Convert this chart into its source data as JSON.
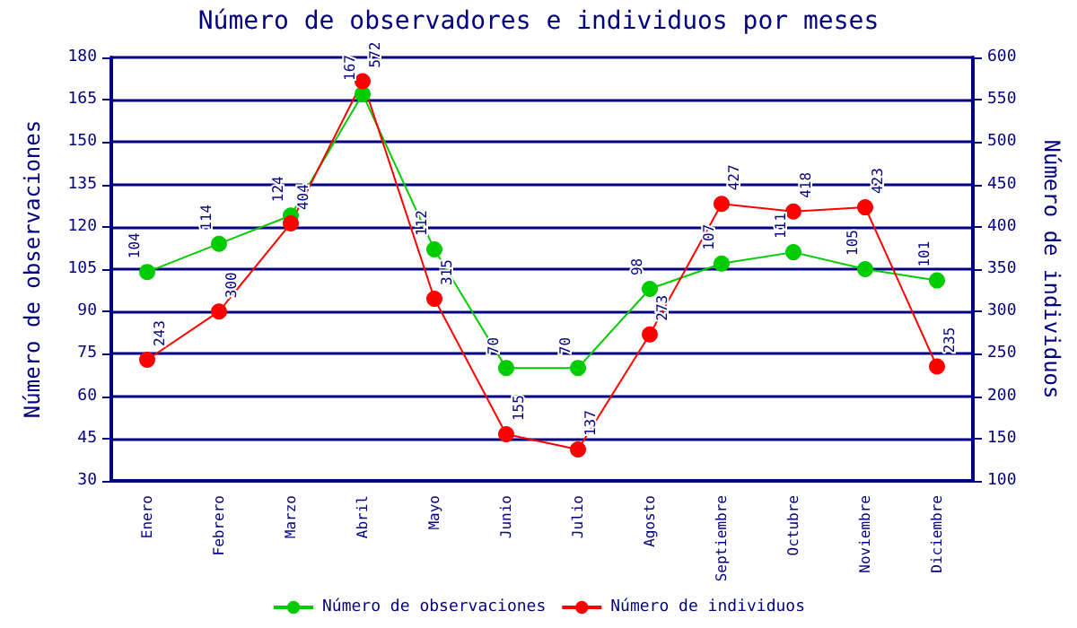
{
  "chart_data": {
    "type": "line",
    "title": "Número de observadores e individuos por meses",
    "ylabel": "Número de observaciones",
    "y2label": "Número de individuos",
    "categories": [
      "Enero",
      "Febrero",
      "Marzo",
      "Abril",
      "Mayo",
      "Junio",
      "Julio",
      "Agosto",
      "Septiembre",
      "Octubre",
      "Noviembre",
      "Diciembre"
    ],
    "series": [
      {
        "name": "Número de observaciones",
        "color": "#00cc00",
        "values": [
          104,
          114,
          124,
          167,
          112,
          70,
          70,
          98,
          107,
          111,
          105,
          101
        ]
      },
      {
        "name": "Número de individuos",
        "color": "#ff0000",
        "axis": "y2",
        "values": [
          243,
          300,
          404,
          572,
          315,
          155,
          137,
          273,
          427,
          418,
          423,
          235
        ]
      }
    ],
    "ylim": [
      30,
      180
    ],
    "yticks": [
      30,
      45,
      60,
      75,
      90,
      105,
      120,
      135,
      150,
      165,
      180
    ],
    "y2lim": [
      100,
      600
    ],
    "y2ticks": [
      100,
      150,
      200,
      250,
      300,
      350,
      400,
      450,
      500,
      550,
      600
    ],
    "grid": "y",
    "legend": "bottom",
    "marker": "circle",
    "line_style": "solid",
    "data_labels": true
  }
}
